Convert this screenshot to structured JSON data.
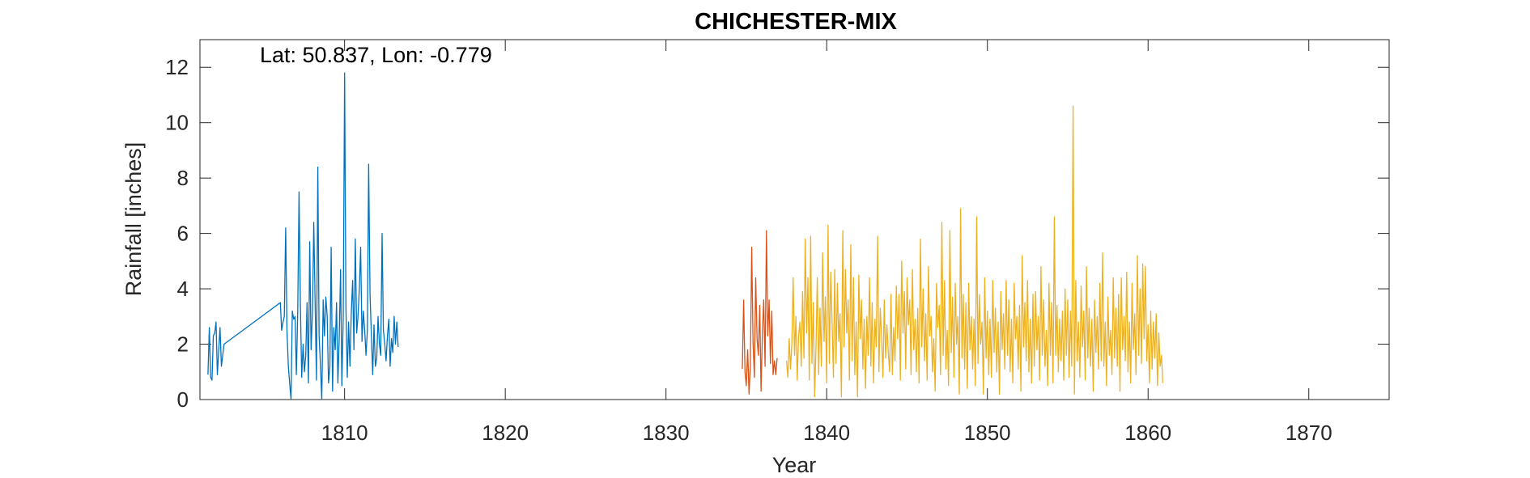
{
  "chart_data": {
    "type": "line",
    "title": "CHICHESTER-MIX",
    "xlabel": "Year",
    "ylabel": "Rainfall [inches]",
    "annotation": "Lat: 50.837, Lon: -0.779",
    "xlim": [
      1801,
      1875
    ],
    "ylim": [
      0,
      13
    ],
    "xticks": [
      1810,
      1820,
      1830,
      1840,
      1850,
      1860,
      1870
    ],
    "yticks": [
      0,
      2,
      4,
      6,
      8,
      10,
      12
    ],
    "grid": false,
    "colors": [
      "#0072BD",
      "#D95319",
      "#EDB120"
    ],
    "series": [
      {
        "color": "#0072BD",
        "x": [
          1801.5,
          1801.583,
          1801.667,
          1801.75,
          1801.833,
          1801.917,
          1802.0,
          1802.083,
          1802.167,
          1802.25,
          1802.333,
          1802.417,
          1802.5,
          1806.0,
          1806.083,
          1806.167,
          1806.25,
          1806.333,
          1806.417,
          1806.5,
          1806.583,
          1806.667,
          1806.75,
          1806.833,
          1806.917,
          1807.0,
          1807.083,
          1807.167,
          1807.25,
          1807.333,
          1807.417,
          1807.5,
          1807.583,
          1807.667,
          1807.75,
          1807.833,
          1807.917,
          1808.0,
          1808.083,
          1808.167,
          1808.25,
          1808.333,
          1808.417,
          1808.5,
          1808.583,
          1808.667,
          1808.75,
          1808.833,
          1808.917,
          1809.0,
          1809.083,
          1809.167,
          1809.25,
          1809.333,
          1809.417,
          1809.5,
          1809.583,
          1809.667,
          1809.75,
          1809.833,
          1809.917,
          1810.0,
          1810.083,
          1810.167,
          1810.25,
          1810.333,
          1810.417,
          1810.5,
          1810.583,
          1810.667,
          1810.75,
          1810.833,
          1810.917,
          1811.0,
          1811.083,
          1811.167,
          1811.25,
          1811.333,
          1811.417,
          1811.5,
          1811.583,
          1811.667,
          1811.75,
          1811.833,
          1811.917,
          1812.0,
          1812.083,
          1812.167,
          1812.25,
          1812.333,
          1812.417,
          1812.5,
          1812.583,
          1812.667,
          1812.75,
          1812.833,
          1812.917,
          1813.0,
          1813.083,
          1813.167,
          1813.25,
          1813.333
        ],
        "y": [
          0.9,
          2.6,
          0.8,
          0.7,
          2.3,
          2.4,
          2.8,
          0.9,
          1.8,
          2.6,
          1.2,
          1.6,
          2.0,
          3.5,
          2.5,
          2.8,
          3.0,
          6.2,
          2.5,
          1.2,
          0.6,
          0.0,
          3.2,
          2.9,
          3.0,
          0.9,
          3.2,
          7.5,
          3.4,
          0.8,
          2.0,
          1.0,
          1.6,
          3.5,
          0.6,
          5.7,
          1.8,
          3.2,
          6.4,
          3.5,
          0.7,
          8.4,
          2.3,
          1.2,
          0.0,
          3.6,
          2.3,
          3.7,
          3.0,
          0.6,
          1.2,
          5.5,
          0.3,
          2.6,
          1.8,
          3.5,
          0.6,
          2.3,
          4.7,
          0.5,
          3.0,
          11.8,
          3.4,
          0.8,
          2.8,
          1.2,
          3.1,
          4.3,
          1.8,
          5.8,
          2.4,
          3.0,
          4.0,
          5.5,
          2.1,
          3.2,
          2.5,
          1.6,
          2.5,
          8.5,
          3.8,
          2.3,
          0.9,
          2.7,
          1.2,
          1.5,
          3.0,
          2.0,
          1.6,
          6.0,
          2.5,
          2.0,
          1.4,
          2.3,
          2.9,
          1.2,
          2.2,
          1.7,
          3.0,
          2.0,
          2.8,
          1.9
        ]
      },
      {
        "color": "#D95319",
        "x": [
          1834.75,
          1834.833,
          1834.917,
          1835.0,
          1835.083,
          1835.167,
          1835.25,
          1835.333,
          1835.417,
          1835.5,
          1835.583,
          1835.667,
          1835.75,
          1835.833,
          1835.917,
          1836.0,
          1836.083,
          1836.167,
          1836.25,
          1836.333,
          1836.417,
          1836.5,
          1836.583,
          1836.667,
          1836.75,
          1836.833,
          1836.917
        ],
        "y": [
          1.1,
          3.6,
          1.0,
          0.5,
          1.8,
          0.2,
          1.2,
          5.5,
          2.1,
          0.8,
          4.4,
          2.2,
          1.6,
          3.4,
          0.3,
          2.4,
          3.6,
          1.2,
          6.1,
          2.3,
          3.6,
          1.3,
          3.2,
          0.9,
          1.4,
          0.9,
          1.5
        ]
      },
      {
        "color": "#EDB120",
        "x": [],
        "y": [],
        "y_monthly_from_1837.5": [
          1.4,
          0.8,
          2.2,
          1.1,
          2.0,
          4.4,
          1.6,
          3.0,
          0.7,
          2.3,
          2.8,
          1.2,
          3.9,
          1.5,
          5.8,
          2.4,
          4.4,
          0.7,
          5.9,
          1.3,
          3.5,
          0.1,
          1.9,
          4.4,
          0.9,
          3.3,
          1.2,
          5.3,
          2.1,
          3.7,
          0.6,
          6.3,
          1.3,
          4.6,
          2.9,
          0.8,
          4.7,
          1.3,
          4.2,
          2.1,
          3.1,
          0.1,
          6.1,
          1.9,
          4.7,
          2.4,
          3.6,
          0.7,
          5.6,
          1.4,
          4.4,
          0.9,
          2.8,
          0.1,
          4.5,
          2.2,
          3.6,
          1.1,
          2.9,
          0.4,
          3.0,
          1.6,
          4.4,
          1.2,
          3.5,
          0.6,
          2.9,
          1.9,
          5.9,
          1.0,
          3.3,
          2.3,
          0.8,
          3.6,
          1.5,
          2.7,
          1.7,
          1.0,
          3.8,
          0.9,
          2.6,
          1.4,
          4.1,
          2.2,
          3.8,
          0.7,
          5.0,
          2.4,
          3.9,
          1.1,
          4.4,
          2.7,
          3.6,
          0.9,
          4.7,
          1.8,
          2.9,
          1.0,
          3.3,
          0.6,
          5.8,
          1.9,
          4.0,
          1.4,
          3.1,
          0.7,
          4.8,
          2.3,
          3.0,
          1.0,
          2.2,
          0.3,
          4.2,
          2.6,
          3.4,
          0.9,
          6.4,
          1.6,
          4.3,
          1.1,
          2.5,
          0.5,
          6.1,
          1.7,
          3.7,
          0.8,
          4.2,
          2.0,
          3.0,
          0.2,
          6.9,
          1.5,
          3.8,
          1.1,
          3.5,
          0.4,
          4.2,
          1.8,
          3.0,
          1.1,
          2.9,
          0.5,
          6.6,
          1.3,
          3.8,
          2.0,
          2.8,
          0.2,
          4.4,
          1.5,
          3.2,
          0.9,
          2.9,
          0.8,
          4.3,
          1.7,
          3.3,
          1.0,
          2.8,
          0.2,
          3.9,
          1.8,
          3.1,
          1.1,
          4.3,
          1.6,
          3.6,
          1.0,
          2.9,
          0.6,
          4.2,
          2.2,
          3.0,
          1.1,
          3.4,
          0.3,
          5.2,
          1.9,
          3.5,
          1.4,
          4.3,
          1.0,
          2.9,
          0.6,
          3.8,
          1.2,
          3.9,
          1.8,
          3.0,
          0.7,
          4.8,
          1.6,
          3.6,
          1.2,
          2.5,
          0.5,
          4.2,
          1.6,
          3.5,
          0.6,
          6.6,
          1.6,
          3.4,
          1.0,
          2.9,
          1.4,
          3.2,
          0.7,
          4.0,
          1.6,
          3.6,
          0.8,
          3.2,
          1.2,
          10.6,
          0.2,
          4.3,
          1.4,
          2.8,
          0.8,
          4.1,
          1.9,
          3.2,
          0.7,
          4.8,
          1.5,
          3.3,
          1.2,
          2.9,
          0.3,
          3.6,
          1.7,
          3.0,
          1.1,
          4.2,
          1.4,
          5.3,
          1.2,
          2.8,
          0.5,
          3.7,
          1.6,
          2.5,
          0.9,
          4.4,
          1.5,
          3.3,
          1.2,
          3.8,
          0.3,
          4.4,
          1.8,
          3.0,
          1.4,
          4.6,
          1.0,
          2.8,
          0.6,
          4.2,
          1.8,
          3.1,
          0.9,
          5.2,
          1.6,
          4.0,
          1.3,
          4.9,
          2.2,
          4.8,
          1.4,
          2.7,
          0.6,
          3.2,
          1.1,
          2.8,
          1.5,
          3.1,
          0.5,
          2.4,
          1.2,
          1.6,
          0.6
        ]
      }
    ]
  }
}
